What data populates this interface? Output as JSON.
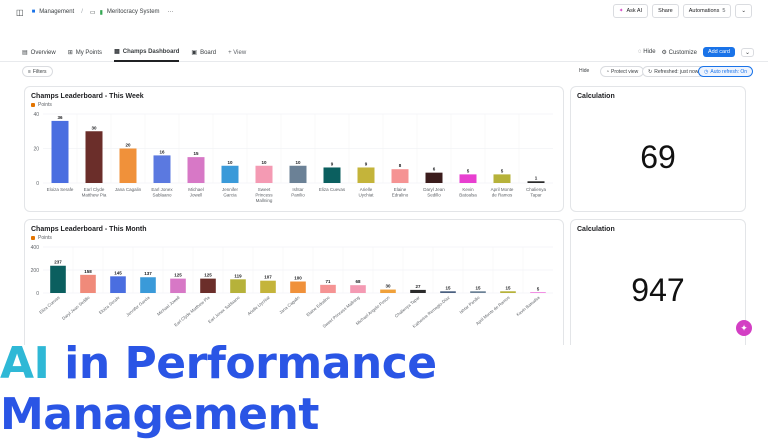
{
  "topbar": {
    "breadcrumb_space": "Management",
    "breadcrumb_page": "Meritocracy System",
    "more": "···",
    "ask_ai": "Ask AI",
    "share": "Share",
    "automations": "Automations",
    "automations_count": "5"
  },
  "tabs": {
    "items": [
      "Overview",
      "My Points",
      "Champs Dashboard",
      "Board"
    ],
    "add_view": "+ View",
    "hide": "Hide",
    "customize": "Customize",
    "add_card": "Add card"
  },
  "filterbar": {
    "filters": "Filters",
    "hide": "Hide",
    "protect_view": "Protect view",
    "refreshed": "Refreshed: just now",
    "auto_refresh": "Auto refresh: On"
  },
  "week_card": {
    "title": "Champs Leaderboard - This Week",
    "legend": "Points"
  },
  "month_card": {
    "title": "Champs Leaderboard - This Month",
    "legend": "Points"
  },
  "calc_week": {
    "title": "Calculation",
    "value": "69"
  },
  "calc_month": {
    "title": "Calculation",
    "value": "947"
  },
  "banner": {
    "ai": "AI",
    "rest": " in Performance Management"
  },
  "fab_label": "✦",
  "chart_data": [
    {
      "type": "bar",
      "title": "Champs Leaderboard - This Week",
      "legend": [
        "Points"
      ],
      "ylim": [
        0,
        40
      ],
      "yticks": [
        0,
        20,
        40
      ],
      "categories": [
        "Eloiza Serafe",
        "Earl Clyde Matthew Pia",
        "Jana Cagalin",
        "Earl Jonex Sablaano",
        "Michael Jowell",
        "Jennifer Garcia",
        "Sweet Princess Mallning",
        "Ishtar Panilio",
        "Eliza Cuevas",
        "Arielle Uychiat",
        "Elaine Edralino",
        "Daryl Jean Sedillo",
        "Kevin Batoalsa",
        "April Monte de Ramos",
        "Chalienya Tapar"
      ],
      "values": [
        36,
        30,
        20,
        16,
        15,
        10,
        10,
        10,
        9,
        9,
        8,
        6,
        5,
        5,
        1
      ],
      "colors": [
        "#4a6ee0",
        "#6b2e2a",
        "#f0913a",
        "#5b79e0",
        "#d778c6",
        "#3a9ad9",
        "#f49ab3",
        "#6b8196",
        "#0b5f5f",
        "#c4b43a",
        "#f59393",
        "#3b1c1c",
        "#e83fd0",
        "#b6b23a",
        "#2b2b2b"
      ]
    },
    {
      "type": "bar",
      "title": "Champs Leaderboard - This Month",
      "legend": [
        "Points"
      ],
      "ylim": [
        0,
        400
      ],
      "yticks": [
        0,
        200,
        400
      ],
      "categories": [
        "Eliza Cuevas",
        "Daryl Jean Sedillo",
        "Eloiza Serafe",
        "Jennifer Garcia",
        "Michael Jowell",
        "Earl Clyde Matthew Pia",
        "Earl Jonex Sablaano",
        "Arielle Uychiat",
        "Jana Cagalin",
        "Elaine Edralino",
        "Sweet Princess Mallning",
        "Michael Angelo Poson",
        "Chalienya Tapar",
        "Katherine Remegio-Diaz",
        "Ishtar Panilio",
        "April Monte de Ramos",
        "Kevin Batoalsa"
      ],
      "values": [
        237,
        158,
        145,
        137,
        125,
        125,
        119,
        107,
        100,
        71,
        68,
        30,
        27,
        15,
        15,
        15,
        5
      ],
      "colors": [
        "#0b5f5f",
        "#f08a7a",
        "#4a6ee0",
        "#3a9ad9",
        "#d778c6",
        "#6b2e2a",
        "#b6b23a",
        "#c4b43a",
        "#f0913a",
        "#f59393",
        "#f49ab3",
        "#f0a13a",
        "#2b2b2b",
        "#4a6080",
        "#6b8196",
        "#b6b23a",
        "#e83fd0"
      ]
    }
  ]
}
